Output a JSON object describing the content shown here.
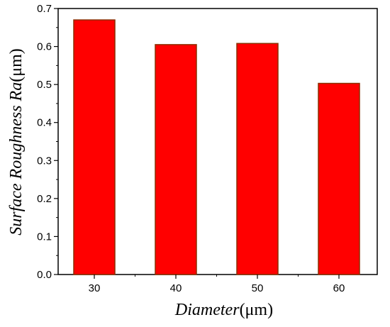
{
  "chart_data": {
    "type": "bar",
    "title": "",
    "categories": [
      "30",
      "40",
      "50",
      "60"
    ],
    "values": [
      0.67,
      0.605,
      0.608,
      0.503
    ],
    "xlabel_italic": "Diameter",
    "xlabel_unit": "(μm)",
    "ylabel_italic": "Surface Roughness Ra",
    "ylabel_unit": "(μm)",
    "ylim": [
      0.0,
      0.7
    ],
    "yticks": [
      "0.0",
      "0.1",
      "0.2",
      "0.3",
      "0.4",
      "0.5",
      "0.6",
      "0.7"
    ],
    "grid": false,
    "legend": "none",
    "bar_color": "#ff0000",
    "bar_edge_color": "#8b2e00"
  }
}
